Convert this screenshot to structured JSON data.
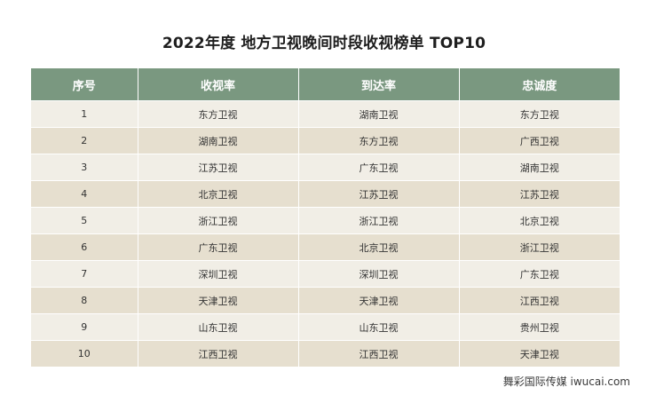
{
  "title": "2022年度 地方卫视晚间时段收视榜单 TOP10",
  "table": {
    "headers": [
      "序号",
      "收视率",
      "到达率",
      "忠诚度"
    ],
    "rows": [
      [
        "1",
        "东方卫视",
        "湖南卫视",
        "东方卫视"
      ],
      [
        "2",
        "湖南卫视",
        "东方卫视",
        "广西卫视"
      ],
      [
        "3",
        "江苏卫视",
        "广东卫视",
        "湖南卫视"
      ],
      [
        "4",
        "北京卫视",
        "江苏卫视",
        "江苏卫视"
      ],
      [
        "5",
        "浙江卫视",
        "浙江卫视",
        "北京卫视"
      ],
      [
        "6",
        "广东卫视",
        "北京卫视",
        "浙江卫视"
      ],
      [
        "7",
        "深圳卫视",
        "深圳卫视",
        "广东卫视"
      ],
      [
        "8",
        "天津卫视",
        "天津卫视",
        "江西卫视"
      ],
      [
        "9",
        "山东卫视",
        "山东卫视",
        "贵州卫视"
      ],
      [
        "10",
        "江西卫视",
        "江西卫视",
        "天津卫视"
      ]
    ]
  },
  "watermark": "舞彩国际传媒 iwucai.com",
  "colors": {
    "header_bg": "#7a9880",
    "row_light": "#f1eee6",
    "row_dark": "#e6dfcf"
  }
}
